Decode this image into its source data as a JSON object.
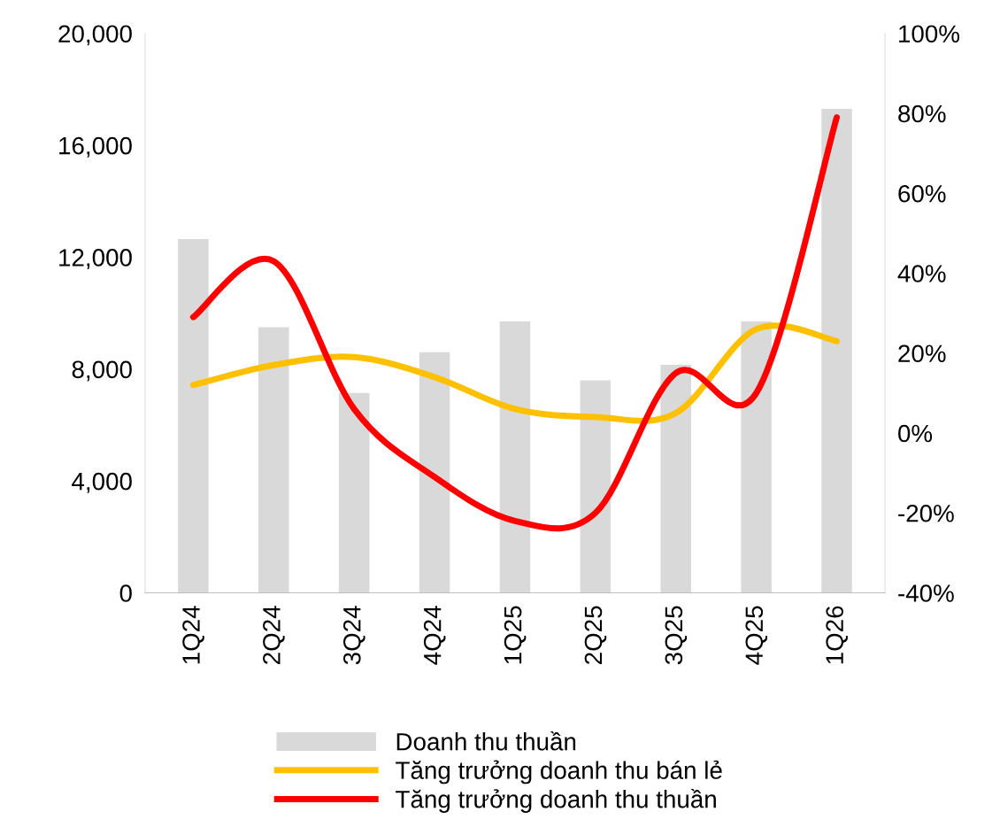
{
  "chart_data": {
    "type": "bar",
    "categories": [
      "1Q24",
      "2Q24",
      "3Q24",
      "4Q24",
      "1Q25",
      "2Q25",
      "3Q25",
      "4Q25",
      "1Q26"
    ],
    "series": [
      {
        "name": "Doanh thu thuần",
        "color": "#d9d9d9",
        "values": [
          12650,
          9500,
          7150,
          8600,
          9700,
          7600,
          8150,
          9700,
          17300
        ]
      },
      {
        "name": "Tăng trưởng doanh thu bán lẻ",
        "type": "line",
        "axis": "y2",
        "color": "#ffc000",
        "values": [
          12,
          17,
          19,
          14,
          6,
          4,
          5,
          26,
          23
        ]
      },
      {
        "name": "Tăng trưởng doanh thu thuần",
        "type": "line",
        "axis": "y2",
        "color": "#ff0000",
        "values": [
          29,
          43,
          6,
          -11,
          -22,
          -20,
          15,
          10,
          79
        ]
      }
    ],
    "ylim": [
      0,
      20000
    ],
    "yticks": [
      {
        "value": 0,
        "label": "0"
      },
      {
        "value": 4000,
        "label": "4,000"
      },
      {
        "value": 8000,
        "label": "8,000"
      },
      {
        "value": 12000,
        "label": "12,000"
      },
      {
        "value": 16000,
        "label": "16,000"
      },
      {
        "value": 20000,
        "label": "20,000"
      }
    ],
    "y2lim": [
      -40,
      100
    ],
    "y2ticks": [
      {
        "value": -40,
        "label": "-40%"
      },
      {
        "value": -20,
        "label": "-20%"
      },
      {
        "value": 0,
        "label": "0%"
      },
      {
        "value": 20,
        "label": "20%"
      },
      {
        "value": 40,
        "label": "40%"
      },
      {
        "value": 60,
        "label": "60%"
      },
      {
        "value": 80,
        "label": "80%"
      },
      {
        "value": 100,
        "label": "100%"
      }
    ],
    "grid": false,
    "legend": "bottom",
    "marker": "none",
    "line_style": "solid"
  }
}
